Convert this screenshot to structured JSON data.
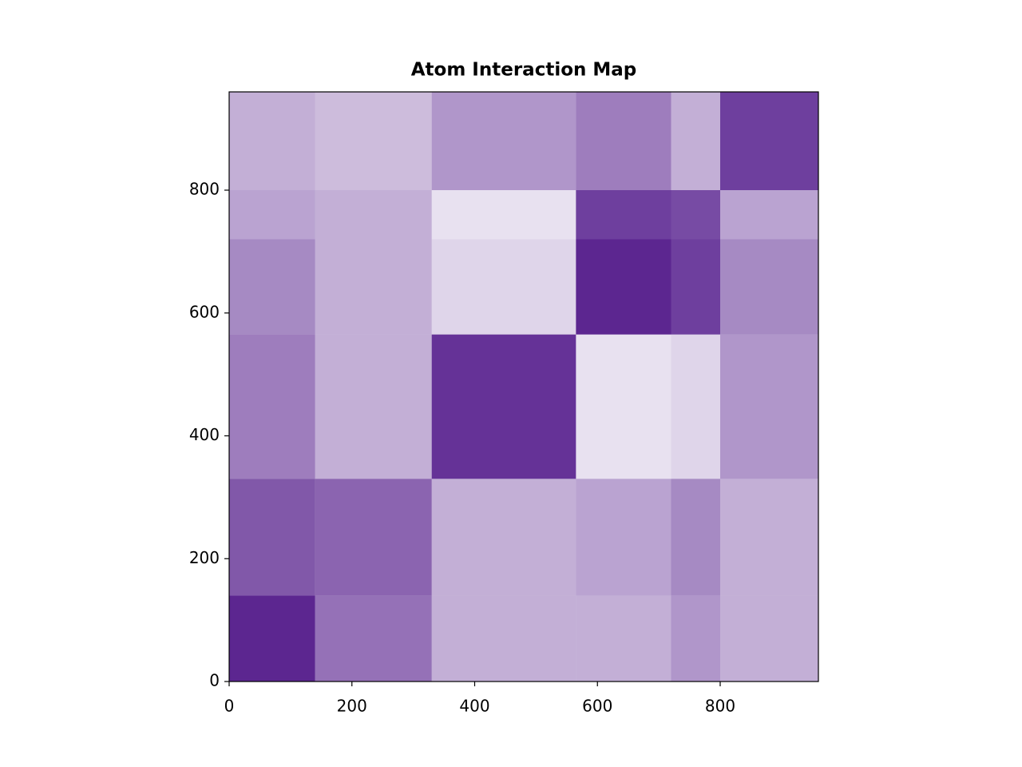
{
  "chart_data": {
    "type": "heatmap",
    "title": "Atom Interaction Map",
    "x_edges": [
      0,
      140,
      330,
      565,
      720,
      800,
      960
    ],
    "y_edges": [
      0,
      140,
      330,
      565,
      720,
      800,
      960
    ],
    "matrix": [
      [
        0.85,
        0.55,
        0.3,
        0.3,
        0.4,
        0.3
      ],
      [
        0.65,
        0.6,
        0.3,
        0.35,
        0.45,
        0.3
      ],
      [
        0.5,
        0.3,
        0.8,
        0.1,
        0.15,
        0.4
      ],
      [
        0.45,
        0.3,
        0.15,
        0.85,
        0.75,
        0.45
      ],
      [
        0.35,
        0.3,
        0.1,
        0.75,
        0.7,
        0.35
      ],
      [
        0.3,
        0.25,
        0.4,
        0.5,
        0.3,
        0.75
      ]
    ],
    "color": "#3f007d",
    "background": "#fcfbfd",
    "xlim": [
      0,
      960
    ],
    "ylim": [
      0,
      960
    ],
    "xticks": [
      0,
      200,
      400,
      600,
      800
    ],
    "yticks": [
      0,
      200,
      400,
      600,
      800
    ]
  }
}
